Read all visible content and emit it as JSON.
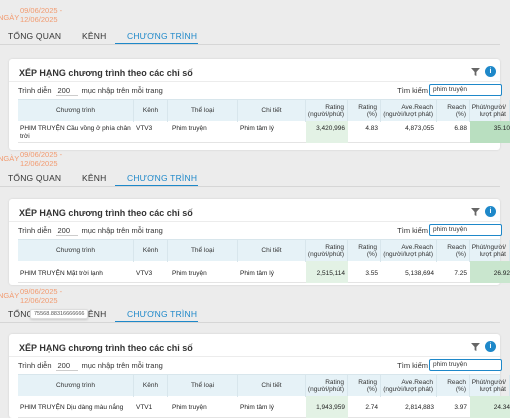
{
  "date_prefix": "NGÀY",
  "date_from": "09/06/2025 -",
  "date_to": "12/06/2025",
  "tabs": {
    "overview": "TỔNG QUAN",
    "channel": "KÊNH",
    "program": "CHƯƠNG TRÌNH"
  },
  "card": {
    "title": "XẾP HẠNG chương trình theo các chỉ số",
    "show_label": "Trình diễn",
    "show_value": "200",
    "per_page_label": "mục nhập trên mỗi trang",
    "search_label": "Tìm kiếm",
    "search_value": "phim truyện"
  },
  "columns": {
    "program": "Chương trình",
    "channel": "Kênh",
    "genre": "Thể loại",
    "detail": "Chi tiết",
    "rating": "Rating (người/phút)",
    "rating_pct": "Rating (%)",
    "reach": "Ave.Reach (người/lượt phát)",
    "reach_pct": "Reach (%)",
    "min_per": "Phút/người/ lượt phát"
  },
  "tooltip": "75568.88316666666",
  "panels": [
    {
      "program": "PHIM TRUYỆN Cầu vồng ở phía chân trời",
      "channel": "VTV3",
      "genre": "Phim truyện",
      "detail": "Phim tâm lý",
      "rating": "3,420,996",
      "rating_pct": "4.83",
      "reach": "4,873,055",
      "reach_pct": "6.88",
      "min_per": "35.10"
    },
    {
      "program": "PHIM TRUYỆN Mặt trời lạnh",
      "channel": "VTV3",
      "genre": "Phim truyện",
      "detail": "Phim tâm lý",
      "rating": "2,515,114",
      "rating_pct": "3.55",
      "reach": "5,138,694",
      "reach_pct": "7.25",
      "min_per": "26.92"
    },
    {
      "program": "PHIM TRUYỆN Dịu dàng màu nắng",
      "channel": "VTV1",
      "genre": "Phim truyện",
      "detail": "Phim tâm lý",
      "rating": "1,943,959",
      "rating_pct": "2.74",
      "reach": "2,814,883",
      "reach_pct": "3.97",
      "min_per": "24.34"
    }
  ]
}
